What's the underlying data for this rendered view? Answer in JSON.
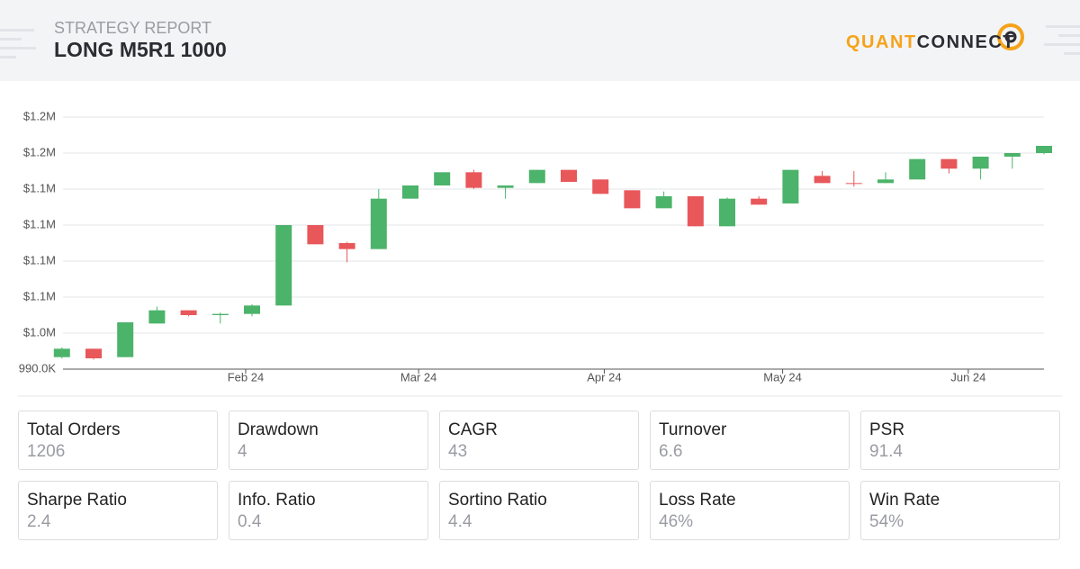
{
  "header": {
    "subtitle": "STRATEGY REPORT",
    "title": "LONG M5R1 1000",
    "logo": [
      "QUANT",
      "CONNECT"
    ]
  },
  "chart_data": {
    "type": "candlestick",
    "up_color": "#4cb36a",
    "down_color": "#e8575a",
    "xlim": [
      -0.25,
      31
    ],
    "xticks": [
      {
        "value": 5.8,
        "label": "Feb 24"
      },
      {
        "value": 11.26,
        "label": "Mar 24"
      },
      {
        "value": 17.12,
        "label": "Apr 24"
      },
      {
        "value": 22.75,
        "label": "May 24"
      },
      {
        "value": 28.61,
        "label": "Jun 24"
      }
    ],
    "ylim": [
      990000,
      1200000
    ],
    "yticks": [
      {
        "value": 990000,
        "label": "990.0K"
      },
      {
        "value": 1020000,
        "label": "$1.0M"
      },
      {
        "value": 1050000,
        "label": "$1.1M"
      },
      {
        "value": 1080000,
        "label": "$1.1M"
      },
      {
        "value": 1110000,
        "label": "$1.1M"
      },
      {
        "value": 1140000,
        "label": "$1.1M"
      },
      {
        "value": 1170000,
        "label": "$1.2M"
      },
      {
        "value": 1200000,
        "label": "$1.2M"
      }
    ],
    "grid": true,
    "x": [
      0,
      1,
      2,
      3,
      4,
      5,
      6,
      7,
      8,
      9,
      10,
      11,
      12,
      13,
      14,
      15,
      16,
      17,
      18,
      19,
      20,
      21,
      22,
      23,
      24,
      25,
      26,
      27,
      28,
      29,
      30,
      31
    ],
    "open": [
      1000000,
      1007000,
      1000000,
      1028000,
      1039000,
      1035000,
      1036000,
      1043000,
      1110000,
      1095000,
      1090000,
      1132000,
      1143000,
      1154000,
      1141000,
      1145000,
      1156000,
      1148000,
      1139000,
      1124000,
      1134000,
      1109000,
      1132000,
      1128000,
      1151000,
      1145000,
      1145000,
      1148000,
      1165000,
      1157000,
      1167000,
      1170000
    ],
    "high": [
      1008000,
      1007000,
      1029000,
      1042000,
      1039000,
      1037000,
      1044000,
      1110000,
      1110000,
      1096000,
      1140000,
      1143000,
      1154000,
      1156000,
      1143000,
      1156000,
      1156000,
      1148000,
      1139000,
      1138000,
      1134000,
      1133000,
      1134000,
      1156000,
      1155000,
      1155000,
      1154000,
      1165000,
      1165000,
      1167000,
      1170000,
      1176000
    ],
    "low": [
      999000,
      998000,
      1000000,
      1028000,
      1034000,
      1028000,
      1034000,
      1043000,
      1094000,
      1079000,
      1090000,
      1132000,
      1143000,
      1140000,
      1132000,
      1145000,
      1146000,
      1136000,
      1124000,
      1124000,
      1109000,
      1109000,
      1127000,
      1128000,
      1145000,
      1142000,
      1145000,
      1148000,
      1153000,
      1148000,
      1157000,
      1169000
    ],
    "close": [
      1007000,
      999000,
      1029000,
      1039000,
      1035000,
      1036000,
      1043000,
      1110000,
      1094000,
      1090000,
      1132000,
      1143000,
      1154000,
      1141000,
      1143000,
      1156000,
      1146000,
      1136000,
      1124000,
      1134000,
      1109000,
      1132000,
      1127000,
      1156000,
      1145000,
      1144500,
      1148000,
      1165000,
      1157000,
      1167000,
      1170000,
      1176000
    ]
  },
  "stats": [
    {
      "label": "Total Orders",
      "value": "1206"
    },
    {
      "label": "Drawdown",
      "value": "4"
    },
    {
      "label": "CAGR",
      "value": "43"
    },
    {
      "label": "Turnover",
      "value": "6.6"
    },
    {
      "label": "PSR",
      "value": "91.4"
    },
    {
      "label": "Sharpe Ratio",
      "value": "2.4"
    },
    {
      "label": "Info. Ratio",
      "value": "0.4"
    },
    {
      "label": "Sortino Ratio",
      "value": "4.4"
    },
    {
      "label": "Loss Rate",
      "value": "46%"
    },
    {
      "label": "Win Rate",
      "value": "54%"
    }
  ]
}
